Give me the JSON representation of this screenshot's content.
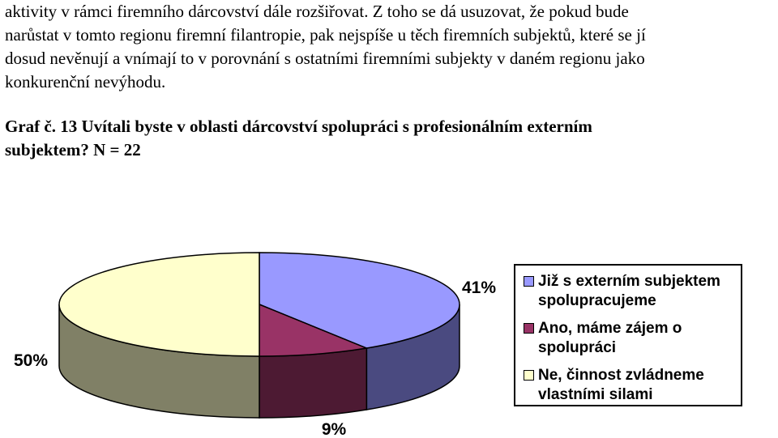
{
  "paragraph": {
    "lines": [
      "aktivity v rámci firemního dárcovství dále rozšiřovat. Z toho se dá usuzovat, že pokud bude",
      "narůstat v tomto regionu firemní filantropie, pak nejspíše u těch firemních subjektů, které se jí",
      "dosud nevěnují a vnímají to v porovnání s ostatními firemními subjekty v daném regionu jako",
      "konkurenční nevýhodu."
    ]
  },
  "caption": {
    "lines": [
      "Graf č. 13 Uvítali byste v oblasti dárcovství spolupráci s profesionálním externím",
      "subjektem? N = 22"
    ]
  },
  "chart_data": {
    "type": "pie",
    "series": [
      {
        "name": "Již s externím subjektem spolupracujeme",
        "value": 41,
        "label": "41%",
        "color": "#9999FF",
        "side_color": "#4A4A80"
      },
      {
        "name": "Ano, máme zájem o spolupráci",
        "value": 9,
        "label": "9%",
        "color": "#993366",
        "side_color": "#4D1A33"
      },
      {
        "name": "Ne, činnost zvládneme vlastními silami",
        "value": 50,
        "label": "50%",
        "color": "#FFFFCC",
        "side_color": "#808066"
      }
    ],
    "legend": {
      "placement": "right",
      "items": [
        {
          "lines": [
            "Již s externím subjektem",
            "spolupracujeme"
          ]
        },
        {
          "lines": [
            "Ano, máme zájem o",
            "spolupráci"
          ]
        },
        {
          "lines": [
            "Ne, činnost zvládneme",
            "vlastními silami"
          ]
        }
      ]
    }
  }
}
